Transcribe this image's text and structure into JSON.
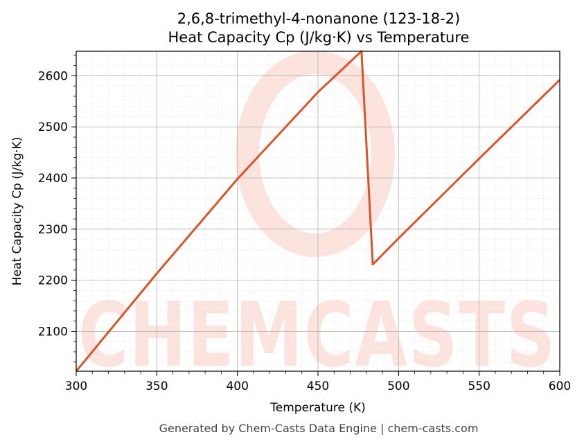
{
  "chart_data": {
    "type": "line",
    "title": "2,6,8-trimethyl-4-nonanone (123-18-2)",
    "subtitle": "Heat Capacity Cp (J/kg·K) vs Temperature",
    "xlabel": "Temperature (K)",
    "ylabel": "Heat Capacity Cp (J/kg·K)",
    "xlim": [
      300,
      600
    ],
    "ylim": [
      2022,
      2648
    ],
    "xticks": [
      300,
      350,
      400,
      450,
      500,
      550,
      600
    ],
    "yticks": [
      2100,
      2200,
      2300,
      2400,
      2500,
      2600
    ],
    "grid": true,
    "legend": "none",
    "series": [
      {
        "color": "#d9542b",
        "x": [
          300,
          350,
          400,
          450,
          477,
          484,
          500,
          550,
          600
        ],
        "y": [
          2022,
          2213,
          2398,
          2568,
          2648,
          2231,
          2282,
          2438,
          2592
        ]
      }
    ]
  },
  "watermark": {
    "text": "CHEMCASTS",
    "color": "#fde3dd"
  },
  "footer": "Generated by Chem-Casts Data Engine | chem-casts.com"
}
